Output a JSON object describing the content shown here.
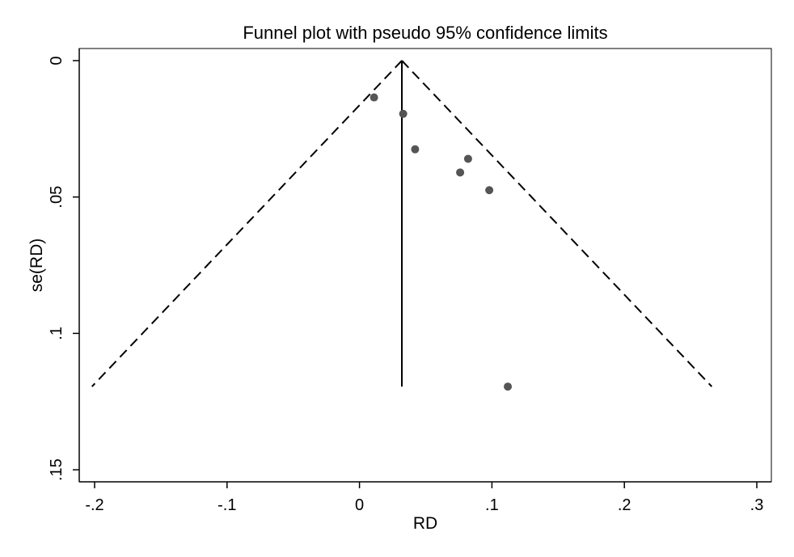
{
  "chart_data": {
    "type": "scatter",
    "title": "Funnel plot with pseudo 95% confidence limits",
    "xlabel": "RD",
    "ylabel": "se(RD)",
    "xlim": [
      -0.205,
      0.31
    ],
    "ylim": [
      0,
      0.155
    ],
    "y_inverted": true,
    "grid": false,
    "xticks": [
      -0.2,
      -0.1,
      0,
      0.1,
      0.2,
      0.3
    ],
    "xtick_labels": [
      "-.2",
      "-.1",
      "0",
      ".1",
      ".2",
      ".3"
    ],
    "yticks": [
      0,
      0.05,
      0.1,
      0.15
    ],
    "ytick_labels": [
      "0",
      ".05",
      ".1",
      ".15"
    ],
    "pooled_estimate": 0.032,
    "confidence_limits": {
      "level": "95%",
      "se_max": 0.1195,
      "left": [
        [
          0.032,
          0
        ],
        [
          -0.202,
          0.1195
        ]
      ],
      "right": [
        [
          0.032,
          0
        ],
        [
          0.266,
          0.1195
        ]
      ]
    },
    "points": [
      {
        "x": 0.011,
        "y": 0.0135
      },
      {
        "x": 0.033,
        "y": 0.0195
      },
      {
        "x": 0.042,
        "y": 0.0325
      },
      {
        "x": 0.082,
        "y": 0.036
      },
      {
        "x": 0.076,
        "y": 0.041
      },
      {
        "x": 0.098,
        "y": 0.0475
      },
      {
        "x": 0.112,
        "y": 0.1195
      }
    ],
    "point_color": "#555555",
    "line_color": "#000000"
  }
}
